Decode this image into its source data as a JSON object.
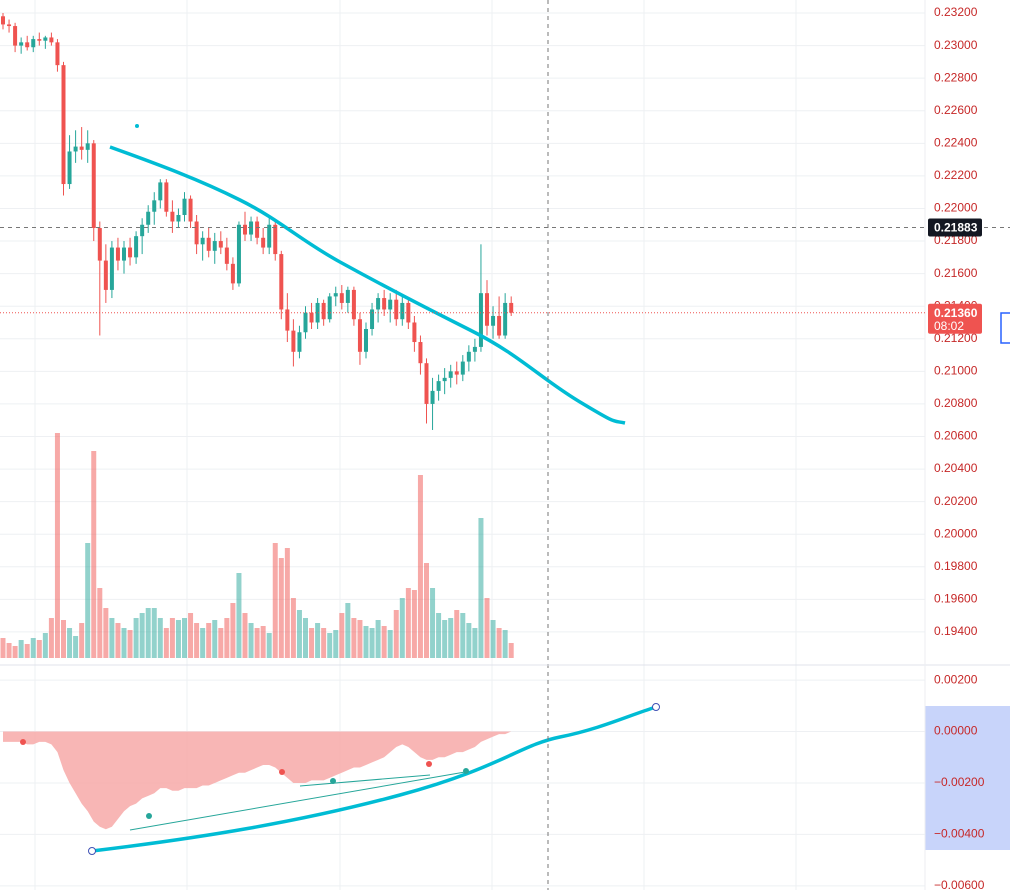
{
  "chart_data": [
    {
      "type": "candlestick",
      "up_color": "#26a69a",
      "down_color": "#ef5350",
      "ylim": [
        0.19197,
        0.2328
      ],
      "yticks": [
        {
          "value": 0.194,
          "label": "0.19400"
        },
        {
          "value": 0.196,
          "label": "0.19600"
        },
        {
          "value": 0.198,
          "label": "0.19800"
        },
        {
          "value": 0.2,
          "label": "0.20000"
        },
        {
          "value": 0.202,
          "label": "0.20200"
        },
        {
          "value": 0.204,
          "label": "0.20400"
        },
        {
          "value": 0.206,
          "label": "0.20600"
        },
        {
          "value": 0.208,
          "label": "0.20800"
        },
        {
          "value": 0.21,
          "label": "0.21000"
        },
        {
          "value": 0.212,
          "label": "0.21200"
        },
        {
          "value": 0.214,
          "label": "0.21400"
        },
        {
          "value": 0.216,
          "label": "0.21600"
        },
        {
          "value": 0.218,
          "label": "0.21800"
        },
        {
          "value": 0.22,
          "label": "0.22000"
        },
        {
          "value": 0.222,
          "label": "0.22200"
        },
        {
          "value": 0.224,
          "label": "0.22400"
        },
        {
          "value": 0.226,
          "label": "0.22600"
        },
        {
          "value": 0.228,
          "label": "0.22800"
        },
        {
          "value": 0.23,
          "label": "0.23000"
        },
        {
          "value": 0.232,
          "label": "0.23200"
        }
      ],
      "crosshair": {
        "value": 0.21883,
        "label": "0.21883"
      },
      "last_price": {
        "value": 0.2136,
        "label": "0.21360"
      },
      "countdown": "08:02",
      "ohlc": [
        [
          0.2318,
          0.232,
          0.231,
          0.2313
        ],
        [
          0.2313,
          0.2316,
          0.2308,
          0.2312
        ],
        [
          0.2312,
          0.2314,
          0.2296,
          0.23
        ],
        [
          0.23,
          0.2305,
          0.2295,
          0.2302
        ],
        [
          0.2302,
          0.2306,
          0.2297,
          0.2299
        ],
        [
          0.2299,
          0.2306,
          0.2296,
          0.2304
        ],
        [
          0.2304,
          0.2308,
          0.23,
          0.2303
        ],
        [
          0.2303,
          0.2306,
          0.2298,
          0.2305
        ],
        [
          0.2305,
          0.2308,
          0.23,
          0.2302
        ],
        [
          0.2302,
          0.2304,
          0.2284,
          0.2288
        ],
        [
          0.2288,
          0.229,
          0.2208,
          0.2215
        ],
        [
          0.2215,
          0.2245,
          0.2212,
          0.2235
        ],
        [
          0.2235,
          0.2248,
          0.2228,
          0.2238
        ],
        [
          0.2238,
          0.225,
          0.223,
          0.2236
        ],
        [
          0.2236,
          0.2248,
          0.2228,
          0.224
        ],
        [
          0.224,
          0.2242,
          0.218,
          0.2188
        ],
        [
          0.2188,
          0.2192,
          0.2122,
          0.2168
        ],
        [
          0.2168,
          0.2178,
          0.2142,
          0.215
        ],
        [
          0.215,
          0.218,
          0.2145,
          0.2176
        ],
        [
          0.2176,
          0.2182,
          0.2162,
          0.2168
        ],
        [
          0.2168,
          0.218,
          0.216,
          0.2176
        ],
        [
          0.2176,
          0.2182,
          0.2165,
          0.217
        ],
        [
          0.217,
          0.2186,
          0.2166,
          0.2183
        ],
        [
          0.2183,
          0.2194,
          0.2172,
          0.219
        ],
        [
          0.219,
          0.2202,
          0.2185,
          0.2198
        ],
        [
          0.2198,
          0.221,
          0.219,
          0.2205
        ],
        [
          0.2205,
          0.2218,
          0.22,
          0.2216
        ],
        [
          0.2216,
          0.2218,
          0.2195,
          0.2198
        ],
        [
          0.2198,
          0.2205,
          0.2185,
          0.2192
        ],
        [
          0.2192,
          0.22,
          0.2188,
          0.2196
        ],
        [
          0.2196,
          0.221,
          0.2192,
          0.2206
        ],
        [
          0.2206,
          0.2208,
          0.2188,
          0.2192
        ],
        [
          0.2192,
          0.2196,
          0.2172,
          0.2178
        ],
        [
          0.2178,
          0.2186,
          0.2168,
          0.2182
        ],
        [
          0.2182,
          0.2188,
          0.217,
          0.2174
        ],
        [
          0.2174,
          0.2185,
          0.2166,
          0.218
        ],
        [
          0.218,
          0.2186,
          0.2172,
          0.2176
        ],
        [
          0.2176,
          0.2182,
          0.2162,
          0.2166
        ],
        [
          0.2166,
          0.217,
          0.215,
          0.2154
        ],
        [
          0.2154,
          0.2192,
          0.2152,
          0.219
        ],
        [
          0.219,
          0.2198,
          0.218,
          0.2184
        ],
        [
          0.2184,
          0.2195,
          0.218,
          0.2192
        ],
        [
          0.2192,
          0.2195,
          0.2178,
          0.2182
        ],
        [
          0.2182,
          0.2188,
          0.2172,
          0.2176
        ],
        [
          0.2176,
          0.2194,
          0.2172,
          0.219
        ],
        [
          0.219,
          0.2192,
          0.2168,
          0.2172
        ],
        [
          0.2172,
          0.2174,
          0.2132,
          0.2138
        ],
        [
          0.2138,
          0.2148,
          0.2118,
          0.2125
        ],
        [
          0.2125,
          0.2132,
          0.2103,
          0.2112
        ],
        [
          0.2112,
          0.2128,
          0.2108,
          0.2124
        ],
        [
          0.2124,
          0.214,
          0.212,
          0.2136
        ],
        [
          0.2136,
          0.2142,
          0.2126,
          0.213
        ],
        [
          0.213,
          0.2145,
          0.2126,
          0.2142
        ],
        [
          0.2142,
          0.2144,
          0.2128,
          0.2132
        ],
        [
          0.2132,
          0.2148,
          0.213,
          0.2146
        ],
        [
          0.2146,
          0.2152,
          0.214,
          0.2148
        ],
        [
          0.2148,
          0.2153,
          0.2138,
          0.2142
        ],
        [
          0.2142,
          0.2152,
          0.2136,
          0.215
        ],
        [
          0.215,
          0.2152,
          0.2128,
          0.2132
        ],
        [
          0.2132,
          0.2136,
          0.2104,
          0.2112
        ],
        [
          0.2112,
          0.213,
          0.2108,
          0.2126
        ],
        [
          0.2126,
          0.2142,
          0.2122,
          0.2138
        ],
        [
          0.2138,
          0.2148,
          0.213,
          0.2145
        ],
        [
          0.2145,
          0.215,
          0.2134,
          0.2138
        ],
        [
          0.2138,
          0.2148,
          0.213,
          0.2144
        ],
        [
          0.2144,
          0.215,
          0.2128,
          0.2132
        ],
        [
          0.2132,
          0.2146,
          0.2128,
          0.2142
        ],
        [
          0.2142,
          0.2145,
          0.2126,
          0.213
        ],
        [
          0.213,
          0.2134,
          0.2112,
          0.2118
        ],
        [
          0.2118,
          0.2122,
          0.2098,
          0.2105
        ],
        [
          0.2105,
          0.2108,
          0.2068,
          0.208
        ],
        [
          0.208,
          0.2096,
          0.2064,
          0.2088
        ],
        [
          0.2088,
          0.2098,
          0.2082,
          0.2094
        ],
        [
          0.2094,
          0.2102,
          0.2086,
          0.2096
        ],
        [
          0.2096,
          0.2104,
          0.209,
          0.21
        ],
        [
          0.21,
          0.2106,
          0.2092,
          0.2098
        ],
        [
          0.2098,
          0.211,
          0.2094,
          0.2106
        ],
        [
          0.2106,
          0.2116,
          0.21,
          0.2112
        ],
        [
          0.2112,
          0.212,
          0.2106,
          0.2115
        ],
        [
          0.2115,
          0.2178,
          0.2112,
          0.2148
        ],
        [
          0.2148,
          0.2156,
          0.2122,
          0.2128
        ],
        [
          0.2128,
          0.214,
          0.212,
          0.2134
        ],
        [
          0.2134,
          0.2146,
          0.212,
          0.2122
        ],
        [
          0.2122,
          0.2148,
          0.212,
          0.2142
        ],
        [
          0.2142,
          0.2146,
          0.2134,
          0.2136
        ]
      ]
    },
    {
      "type": "volume",
      "ylim": [
        0,
        230
      ],
      "values": [
        20,
        15,
        12,
        18,
        14,
        20,
        18,
        25,
        40,
        225,
        38,
        30,
        22,
        35,
        115,
        207,
        70,
        50,
        40,
        35,
        30,
        28,
        40,
        45,
        50,
        50,
        40,
        30,
        40,
        38,
        40,
        45,
        35,
        30,
        35,
        38,
        30,
        40,
        55,
        85,
        45,
        35,
        30,
        32,
        25,
        115,
        100,
        110,
        60,
        48,
        40,
        30,
        35,
        30,
        25,
        28,
        45,
        55,
        40,
        38,
        32,
        30,
        38,
        32,
        28,
        48,
        60,
        70,
        68,
        183,
        95,
        70,
        45,
        38,
        40,
        48,
        45,
        35,
        30,
        140,
        60,
        38,
        30,
        28,
        15
      ]
    },
    {
      "type": "area",
      "color": "#f7a9a8",
      "ylim": [
        -0.00616,
        0.00247
      ],
      "yticks": [
        {
          "value": 0.002,
          "label": "0.00200"
        },
        {
          "value": 0,
          "label": "0.00000"
        },
        {
          "value": -0.002,
          "label": "−0.00200"
        },
        {
          "value": -0.004,
          "label": "−0.00400"
        },
        {
          "value": -0.006,
          "label": "−0.00600"
        }
      ],
      "values": [
        -0.0004,
        -0.0004,
        -0.0004,
        -0.0004,
        -0.0005,
        -0.0005,
        -0.0004,
        -0.0004,
        -0.0005,
        -0.0008,
        -0.0015,
        -0.002,
        -0.0024,
        -0.0028,
        -0.0031,
        -0.0035,
        -0.0037,
        -0.0038,
        -0.0037,
        -0.0034,
        -0.0031,
        -0.0029,
        -0.0028,
        -0.0026,
        -0.0025,
        -0.0024,
        -0.0022,
        -0.0022,
        -0.0023,
        -0.0023,
        -0.0022,
        -0.0022,
        -0.0022,
        -0.0021,
        -0.0021,
        -0.002,
        -0.0019,
        -0.0018,
        -0.0017,
        -0.0016,
        -0.0016,
        -0.0015,
        -0.0014,
        -0.0013,
        -0.0013,
        -0.0014,
        -0.0016,
        -0.0018,
        -0.002,
        -0.002,
        -0.002,
        -0.0019,
        -0.0019,
        -0.0019,
        -0.0018,
        -0.0017,
        -0.0016,
        -0.0015,
        -0.0014,
        -0.0014,
        -0.0013,
        -0.0012,
        -0.0011,
        -0.001,
        -0.0008,
        -0.0006,
        -0.0005,
        -0.0006,
        -0.0008,
        -0.001,
        -0.0011,
        -0.0011,
        -0.001,
        -0.001,
        -0.0009,
        -0.0008,
        -0.0008,
        -0.0007,
        -0.0006,
        -0.0004,
        -0.0003,
        -0.0002,
        -0.0001,
        -0.0001,
        0
      ]
    }
  ]
}
